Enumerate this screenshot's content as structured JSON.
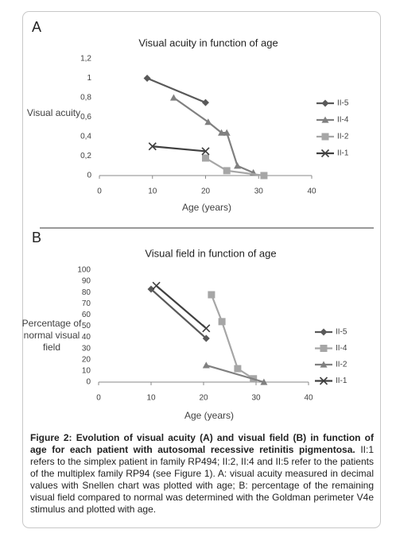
{
  "chart_data": [
    {
      "type": "line",
      "panel_label": "A",
      "title": "Visual acuity in function of age",
      "y_label": "Visual acuity",
      "x_label": "Age (years)",
      "xlim": [
        0,
        40
      ],
      "xticks": [
        0,
        10,
        20,
        30,
        40
      ],
      "ylim": [
        0,
        1.2
      ],
      "yticks": [
        0,
        {
          "value": 0.2,
          "label": "0,2"
        },
        {
          "value": 0.4,
          "label": "0,4"
        },
        {
          "value": 0.6,
          "label": "0,6"
        },
        {
          "value": 0.8,
          "label": "0,8"
        },
        1,
        {
          "value": 1.2,
          "label": "1,2"
        }
      ],
      "grid": false,
      "legend": "right",
      "series": [
        {
          "name": "II-5",
          "color": "#595959",
          "marker": "diamond",
          "x": [
            9,
            20
          ],
          "values": [
            1,
            0.75
          ]
        },
        {
          "name": "II-4",
          "color": "#808080",
          "marker": "triangle",
          "x": [
            14,
            20.5,
            23,
            24,
            26,
            29
          ],
          "values": [
            0.8,
            0.55,
            0.44,
            0.44,
            0.1,
            0.03
          ]
        },
        {
          "name": "II-2",
          "color": "#a6a6a6",
          "marker": "square",
          "x": [
            20,
            24,
            31
          ],
          "values": [
            0.18,
            0.05,
            0
          ]
        },
        {
          "name": "II-1",
          "color": "#404040",
          "marker": "x",
          "x": [
            10,
            20
          ],
          "values": [
            0.3,
            0.25
          ]
        }
      ]
    },
    {
      "type": "line",
      "panel_label": "B",
      "title": "Visual field in function of age",
      "y_label": "Percentage of normal visual field",
      "x_label": "Age (years)",
      "xlim": [
        0,
        40
      ],
      "xticks": [
        0,
        10,
        20,
        30,
        40
      ],
      "ylim": [
        0,
        100
      ],
      "yticks": [
        0,
        10,
        20,
        30,
        40,
        50,
        60,
        70,
        80,
        90,
        100
      ],
      "grid": false,
      "legend": "right",
      "series": [
        {
          "name": "II-5",
          "color": "#595959",
          "marker": "diamond",
          "x": [
            10,
            20.5
          ],
          "values": [
            83,
            39
          ]
        },
        {
          "name": "II-4",
          "color": "#a6a6a6",
          "marker": "square",
          "x": [
            21.5,
            23.5,
            26.5,
            29.5
          ],
          "values": [
            78,
            54,
            12,
            3
          ]
        },
        {
          "name": "II-2",
          "color": "#808080",
          "marker": "triangle",
          "x": [
            20.5,
            31.5
          ],
          "values": [
            15,
            0
          ]
        },
        {
          "name": "II-1",
          "color": "#404040",
          "marker": "x",
          "x": [
            11,
            20.5
          ],
          "values": [
            86,
            48
          ]
        }
      ]
    }
  ],
  "caption": {
    "title": "Figure 2: Evolution of visual acuity (A) and visual field (B) in function of age for each patient with autosomal recessive retinitis pigmentosa.",
    "text": "II:1 refers to the simplex patient in family RP494; II:2, II:4 and II:5 refer to the patients of the multiplex family RP94 (see Figure 1). A: visual acuity measured in decimal values with Snellen chart was plotted with age; B: percentage of the remaining visual field compared to normal was determined with the Goldman perimeter V4e stimulus and plotted with age."
  }
}
